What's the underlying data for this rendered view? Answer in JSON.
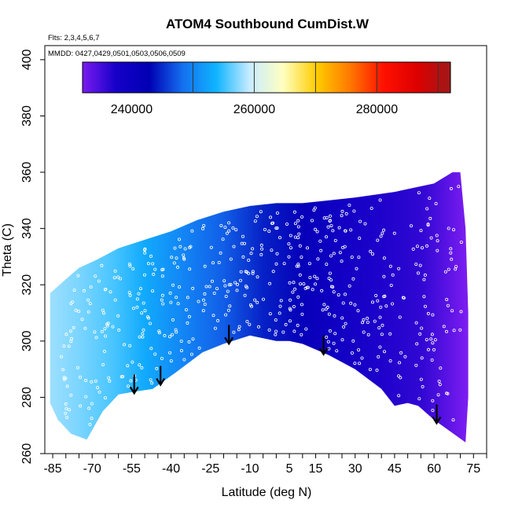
{
  "chart_data": {
    "type": "heatmap",
    "title": "ATOM4 Southbound CumDist.W",
    "flights_note": "Flts: 2,3,4,5,6,7",
    "dates_note": "MMDD: 0427,0429,0501,0503,0506,0509",
    "xlabel": "Latitude (deg N)",
    "ylabel": "Theta (C)",
    "xlim": [
      -88,
      80
    ],
    "ylim": [
      260,
      405
    ],
    "x_ticks": [
      -85,
      -70,
      -55,
      -40,
      -25,
      -10,
      5,
      15,
      30,
      45,
      60,
      75
    ],
    "y_ticks": [
      260,
      280,
      300,
      320,
      340,
      360,
      380,
      400
    ],
    "colorbar": {
      "range": [
        232000,
        292000
      ],
      "ticks": [
        240000,
        260000,
        280000
      ],
      "dividers": [
        250000,
        260000,
        270000,
        280000,
        290000
      ],
      "colors": [
        "#7a1cf0",
        "#1600c8",
        "#0000b4",
        "#1470f0",
        "#10b4ff",
        "#c8ecff",
        "#ffffc0",
        "#ffcc00",
        "#ff7800",
        "#ff1000",
        "#dd0000",
        "#a01818"
      ]
    },
    "upper_boundary": [
      [
        -86,
        317
      ],
      [
        -80,
        322
      ],
      [
        -75,
        326
      ],
      [
        -68,
        329
      ],
      [
        -60,
        333
      ],
      [
        -50,
        336
      ],
      [
        -40,
        339
      ],
      [
        -30,
        343
      ],
      [
        -20,
        346
      ],
      [
        -10,
        348
      ],
      [
        0,
        349
      ],
      [
        10,
        349
      ],
      [
        20,
        350
      ],
      [
        30,
        351
      ],
      [
        45,
        353
      ],
      [
        60,
        356
      ],
      [
        67,
        360
      ],
      [
        70,
        360
      ],
      [
        72,
        340
      ],
      [
        73,
        310
      ],
      [
        73,
        280
      ],
      [
        72,
        264
      ]
    ],
    "lower_boundary": [
      [
        -86,
        278
      ],
      [
        -83,
        272
      ],
      [
        -78,
        267
      ],
      [
        -72,
        265
      ],
      [
        -66,
        275
      ],
      [
        -60,
        281
      ],
      [
        -54,
        282
      ],
      [
        -47,
        283
      ],
      [
        -38,
        289
      ],
      [
        -28,
        296
      ],
      [
        -20,
        299
      ],
      [
        -10,
        302
      ],
      [
        0,
        300
      ],
      [
        5,
        300
      ],
      [
        10,
        299
      ],
      [
        20,
        295
      ],
      [
        30,
        290
      ],
      [
        40,
        283
      ],
      [
        45,
        277
      ],
      [
        50,
        278
      ],
      [
        54,
        277
      ],
      [
        60,
        272
      ],
      [
        66,
        268
      ],
      [
        72,
        264
      ]
    ],
    "arrows_lat": [
      -54,
      -44,
      -18,
      18,
      61
    ],
    "gradient_stops": [
      [
        -86,
        258000
      ],
      [
        -75,
        257000
      ],
      [
        -62,
        255500
      ],
      [
        -50,
        253000
      ],
      [
        -35,
        250000
      ],
      [
        -20,
        247500
      ],
      [
        -5,
        244500
      ],
      [
        10,
        241500
      ],
      [
        25,
        238500
      ],
      [
        40,
        237000
      ],
      [
        55,
        236000
      ],
      [
        62,
        234500
      ],
      [
        72,
        231500
      ]
    ]
  }
}
